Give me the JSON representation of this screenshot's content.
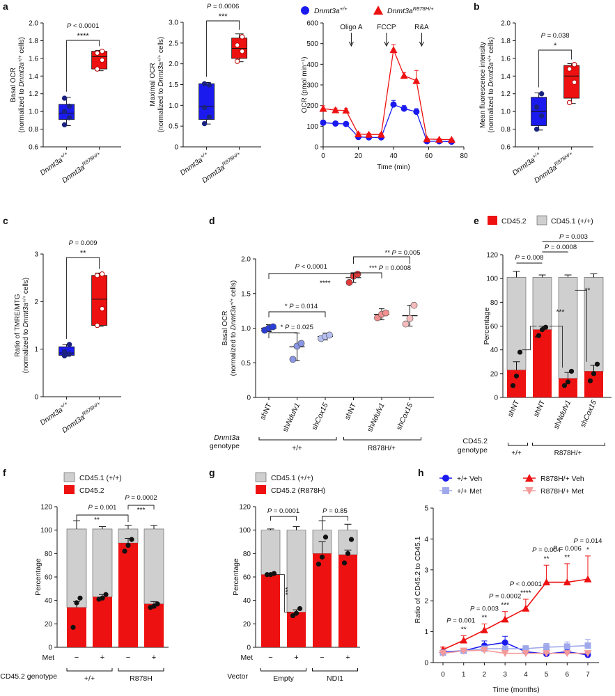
{
  "figure": {
    "colors": {
      "wt": "#1a1aef",
      "mut": "#ee1111",
      "grey": "#cfcfcf",
      "black": "#111111",
      "met_wt": "#9fa8ea",
      "met_mut": "#f49a9a"
    }
  },
  "chart_data": [
    {
      "id": "a1",
      "type": "box",
      "panel_label": "a",
      "ylabel": [
        "Basal OCR",
        "(normalized to Dnmt3a+/+ cells)"
      ],
      "ylim": [
        0.6,
        2.0
      ],
      "yticks": [
        "0.6",
        "0.8",
        "1.0",
        "1.2",
        "1.4",
        "1.6",
        "1.8",
        "2.0"
      ],
      "categories": [
        "Dnmt3a+/+",
        "Dnmt3aR878H/+"
      ],
      "boxes": [
        {
          "q1": 0.91,
          "median": 0.98,
          "q3": 1.08,
          "min": 0.84,
          "max": 1.16,
          "points": [
            0.85,
            0.93,
            1.0,
            1.06,
            1.15
          ]
        },
        {
          "q1": 1.48,
          "median": 1.62,
          "q3": 1.68,
          "min": 1.46,
          "max": 1.69,
          "points": [
            1.48,
            1.58,
            1.66,
            1.68
          ]
        }
      ],
      "annotation": {
        "p": "P < 0.0001",
        "stars": "****"
      }
    },
    {
      "id": "a2",
      "type": "box",
      "ylabel": [
        "Maximal OCR",
        "(normalized to Dnmt3a+/+ cells)"
      ],
      "ylim": [
        0,
        3
      ],
      "yticks": [
        "0",
        "0.5",
        "1.0",
        "1.5",
        "2.0",
        "2.5",
        "3.0"
      ],
      "categories": [
        "Dnmt3a+/+",
        "Dnmt3aR878H/+"
      ],
      "boxes": [
        {
          "q1": 0.66,
          "median": 0.98,
          "q3": 1.52,
          "min": 0.55,
          "max": 1.55,
          "points": [
            0.56,
            0.72,
            0.95,
            1.49,
            1.52
          ]
        },
        {
          "q1": 2.13,
          "median": 2.37,
          "q3": 2.62,
          "min": 2.05,
          "max": 2.72,
          "points": [
            2.06,
            2.3,
            2.45,
            2.65
          ]
        }
      ],
      "annotation": {
        "p": "P = 0.0006",
        "stars": "***"
      }
    },
    {
      "id": "a3",
      "type": "line",
      "ylabel": [
        "OCR (pmol min⁻¹)"
      ],
      "xlabel": "Time (min)",
      "xlim": [
        0,
        80
      ],
      "ylim": [
        0,
        600
      ],
      "xticks": [
        "0",
        "20",
        "40",
        "60",
        "80"
      ],
      "yticks": [
        "0",
        "100",
        "200",
        "300",
        "400",
        "500",
        "600"
      ],
      "legend": [
        "Dnmt3a+/+",
        "Dnmt3aR878H/+"
      ],
      "injections": [
        {
          "label": "Oligo A",
          "x": 16
        },
        {
          "label": "FCCP",
          "x": 36
        },
        {
          "label": "R&A",
          "x": 56
        }
      ],
      "x": [
        0,
        7,
        13,
        20,
        26,
        33,
        40,
        46,
        53,
        59,
        66,
        73
      ],
      "series": [
        {
          "name": "Dnmt3a+/+",
          "values": [
            117,
            113,
            111,
            48,
            46,
            46,
            205,
            185,
            170,
            27,
            27,
            25
          ],
          "err": [
            12,
            8,
            8,
            5,
            5,
            5,
            20,
            15,
            15,
            3,
            3,
            3
          ]
        },
        {
          "name": "Dnmt3aR878H/+",
          "values": [
            185,
            178,
            176,
            62,
            60,
            60,
            470,
            345,
            320,
            38,
            36,
            35
          ],
          "err": [
            14,
            10,
            10,
            6,
            6,
            6,
            25,
            15,
            50,
            4,
            4,
            4
          ]
        }
      ]
    },
    {
      "id": "b",
      "type": "box",
      "panel_label": "b",
      "ylabel": [
        "Mean fluorescence intensity",
        "(normalized to Dnmt3a+/+ cells)"
      ],
      "ylim": [
        0.6,
        2.0
      ],
      "yticks": [
        "0.6",
        "0.8",
        "1.0",
        "1.2",
        "1.4",
        "1.6",
        "1.8",
        "2.0"
      ],
      "categories": [
        "Dnmt3a+/+",
        "Dnmt3aR878H/+"
      ],
      "boxes": [
        {
          "q1": 0.84,
          "median": 1.0,
          "q3": 1.16,
          "min": 0.79,
          "max": 1.21,
          "points": [
            0.8,
            0.95,
            1.05,
            1.2
          ]
        },
        {
          "q1": 1.15,
          "median": 1.4,
          "q3": 1.52,
          "min": 1.09,
          "max": 1.54,
          "points": [
            1.1,
            1.33,
            1.48,
            1.53
          ]
        }
      ],
      "annotation": {
        "p": "P = 0.038",
        "stars": "*"
      }
    },
    {
      "id": "c",
      "type": "box",
      "panel_label": "c",
      "ylabel": [
        "Ratio of TMRE/MTG",
        "(normalized to Dnmt3a+/+ cells)"
      ],
      "ylim": [
        0,
        3
      ],
      "yticks": [
        "0",
        "1",
        "2",
        "3"
      ],
      "categories": [
        "Dnmt3a+/+",
        "Dnmt3aR878H/+"
      ],
      "boxes": [
        {
          "q1": 0.87,
          "median": 0.92,
          "q3": 1.05,
          "min": 0.85,
          "max": 1.1,
          "points": [
            0.86,
            0.9,
            0.95,
            1.1
          ]
        },
        {
          "q1": 1.5,
          "median": 2.05,
          "q3": 2.55,
          "min": 1.48,
          "max": 2.6,
          "points": [
            1.5,
            1.85,
            2.55,
            2.58
          ]
        }
      ],
      "annotation": {
        "p": "P = 0.009",
        "stars": "**"
      }
    },
    {
      "id": "d",
      "type": "dot",
      "panel_label": "d",
      "ylabel": [
        "Basal OCR",
        "(normalized to Dnmt3a+/+ cells)"
      ],
      "ylim": [
        0,
        2.0
      ],
      "yticks": [
        "0",
        "0.5",
        "1.0",
        "1.5",
        "2.0"
      ],
      "categories": [
        "shNT",
        "shNdufv1",
        "shCox15",
        "shNT",
        "shNdufv1",
        "shCox15"
      ],
      "means": [
        1.0,
        0.73,
        0.88,
        1.73,
        1.2,
        1.18
      ],
      "errs": [
        0.05,
        0.2,
        0.05,
        0.07,
        0.08,
        0.15
      ],
      "points": [
        [
          0.97,
          1.0,
          1.02
        ],
        [
          0.55,
          0.74,
          0.78
        ],
        [
          0.85,
          0.88,
          0.9
        ],
        [
          1.66,
          1.75,
          1.78
        ],
        [
          1.15,
          1.2,
          1.22
        ],
        [
          1.06,
          1.14,
          1.33
        ]
      ],
      "colors": [
        "#2a3ed8",
        "#8a96e4",
        "#b6c0f0",
        "#e03a3a",
        "#f09090",
        "#f6bcbc"
      ],
      "comparisons": [
        {
          "text": "P < 0.0001",
          "stars": "****"
        },
        {
          "text": "* P = 0.014"
        },
        {
          "text": "* P = 0.025"
        },
        {
          "text": "** P = 0.005"
        },
        {
          "text": "*** P = 0.0008"
        }
      ],
      "group_label": [
        "Dnmt3a",
        "genotype"
      ],
      "groups": [
        "+/+",
        "R878H/+"
      ]
    },
    {
      "id": "e",
      "type": "stacked_bar",
      "panel_label": "e",
      "ylabel": [
        "Percentage"
      ],
      "ylim": [
        0,
        120
      ],
      "yticks": [
        "0",
        "20",
        "40",
        "60",
        "80",
        "100",
        "120"
      ],
      "legend": [
        "CD45.2",
        "CD45.1 (+/+)"
      ],
      "categories": [
        "shNT",
        "shNT",
        "shNdufv1",
        "shCox15"
      ],
      "red": [
        23,
        57,
        16,
        22
      ],
      "red_err": [
        7,
        3,
        5,
        5
      ],
      "grey_top": [
        101,
        101,
        101,
        101
      ],
      "grey_err": [
        5,
        2,
        2,
        3
      ],
      "points": [
        [
          10,
          18,
          38
        ],
        [
          52,
          57,
          59
        ],
        [
          10,
          13,
          22
        ],
        [
          14,
          20,
          28
        ]
      ],
      "comparisons": [
        {
          "text": "P = 0.008"
        },
        {
          "text": "P = 0.0008"
        },
        {
          "text": "P = 0.003"
        },
        {
          "text": "**"
        },
        {
          "text": "***"
        },
        {
          "text": "**"
        }
      ],
      "group_label": [
        "CD45.2",
        "genotype"
      ],
      "groups": [
        "+/+",
        "R878H/+"
      ]
    },
    {
      "id": "f",
      "type": "stacked_bar",
      "panel_label": "f",
      "ylabel": [
        "Percentage"
      ],
      "ylim": [
        0,
        120
      ],
      "yticks": [
        "0",
        "20",
        "40",
        "60",
        "80",
        "100",
        "120"
      ],
      "legend": [
        "CD45.1 (+/+)",
        "CD45.2"
      ],
      "met_label": "Met",
      "met": [
        "−",
        "+",
        "−",
        "+"
      ],
      "red": [
        34,
        43,
        89,
        37
      ],
      "red_err": [
        5,
        2,
        4,
        2
      ],
      "grey_top": [
        101,
        101,
        101,
        101
      ],
      "grey_err": [
        7,
        2,
        3,
        3
      ],
      "points": [
        [
          17,
          38,
          42
        ],
        [
          41,
          42,
          45
        ],
        [
          82,
          87,
          92
        ],
        [
          34,
          35,
          37
        ]
      ],
      "comparisons": [
        {
          "text": "P = 0.001",
          "stars": "**"
        },
        {
          "text": "P = 0.0002",
          "stars": "***"
        }
      ],
      "group_label": [
        "CD45.2 genotype"
      ],
      "groups": [
        "+/+",
        "R878H"
      ]
    },
    {
      "id": "g",
      "type": "stacked_bar",
      "panel_label": "g",
      "ylabel": [
        "Percentage"
      ],
      "ylim": [
        0,
        120
      ],
      "yticks": [
        "0",
        "20",
        "40",
        "60",
        "80",
        "100",
        "120"
      ],
      "legend": [
        "CD45.1 (+/+)",
        "CD45.2 (R878H)"
      ],
      "met_label": "Met",
      "met": [
        "−",
        "+",
        "−",
        "+"
      ],
      "red": [
        62,
        30,
        80,
        79
      ],
      "red_err": [
        1,
        2,
        10,
        4
      ],
      "grey_top": [
        100,
        100,
        100,
        100
      ],
      "grey_err": [
        1,
        3,
        8,
        5
      ],
      "points": [
        [
          62,
          62,
          63
        ],
        [
          27,
          29,
          33
        ],
        [
          71,
          77,
          94
        ],
        [
          72,
          80,
          92
        ]
      ],
      "comparisons": [
        {
          "text": "P = 0.0001",
          "stars": "***"
        },
        {
          "text": "P = 0.85"
        }
      ],
      "group_label": [
        "Vector"
      ],
      "groups": [
        "Empty",
        "NDI1"
      ]
    },
    {
      "id": "h",
      "type": "line",
      "panel_label": "h",
      "ylabel": [
        "Ratio of CD45.2 to CD45.1"
      ],
      "xlabel": "Time (months)",
      "xlim": [
        0,
        7
      ],
      "ylim": [
        0,
        5
      ],
      "xticks": [
        "0",
        "1",
        "2",
        "3",
        "4",
        "5",
        "6",
        "7"
      ],
      "yticks": [
        "0",
        "1",
        "2",
        "3",
        "4",
        "5"
      ],
      "legend": [
        "+/+ Veh",
        "R878H/+ Veh",
        "+/+ Met",
        "R878H/+ Met"
      ],
      "x": [
        0,
        1,
        2,
        3,
        4,
        5,
        6,
        7
      ],
      "series": [
        {
          "name": "+/+ Veh",
          "values": [
            0.35,
            0.38,
            0.55,
            0.65,
            0.35,
            0.28,
            0.35,
            0.25
          ],
          "err": [
            0.05,
            0.08,
            0.15,
            0.2,
            0.08,
            0.06,
            0.1,
            0.08
          ]
        },
        {
          "name": "R878H/+ Veh",
          "values": [
            0.42,
            0.72,
            1.05,
            1.4,
            1.75,
            2.6,
            2.6,
            2.7
          ],
          "err": [
            0.08,
            0.15,
            0.2,
            0.25,
            0.3,
            0.55,
            0.6,
            0.75
          ]
        },
        {
          "name": "+/+ Met",
          "values": [
            0.32,
            0.38,
            0.45,
            0.45,
            0.45,
            0.5,
            0.52,
            0.55
          ],
          "err": [
            0.05,
            0.05,
            0.08,
            0.08,
            0.1,
            0.12,
            0.15,
            0.2
          ]
        },
        {
          "name": "R878H/+ Met",
          "values": [
            0.3,
            0.38,
            0.4,
            0.3,
            0.3,
            0.3,
            0.3,
            0.3
          ],
          "err": [
            0.05,
            0.05,
            0.05,
            0.05,
            0.05,
            0.05,
            0.05,
            0.05
          ]
        }
      ],
      "annotations": [
        {
          "month": 1,
          "p": "P = 0.001",
          "stars": "**"
        },
        {
          "month": 2,
          "p": "P = 0.003",
          "stars": "**"
        },
        {
          "month": 3,
          "p": "P = 0.0002",
          "stars": "***"
        },
        {
          "month": 4,
          "p": "P < 0.0001",
          "stars": "****"
        },
        {
          "month": 5,
          "p": "P = 0.004",
          "stars": "**"
        },
        {
          "month": 6,
          "p": "P = 0.006",
          "stars": "**"
        },
        {
          "month": 7,
          "p": "P = 0.014",
          "stars": "*"
        }
      ]
    }
  ]
}
